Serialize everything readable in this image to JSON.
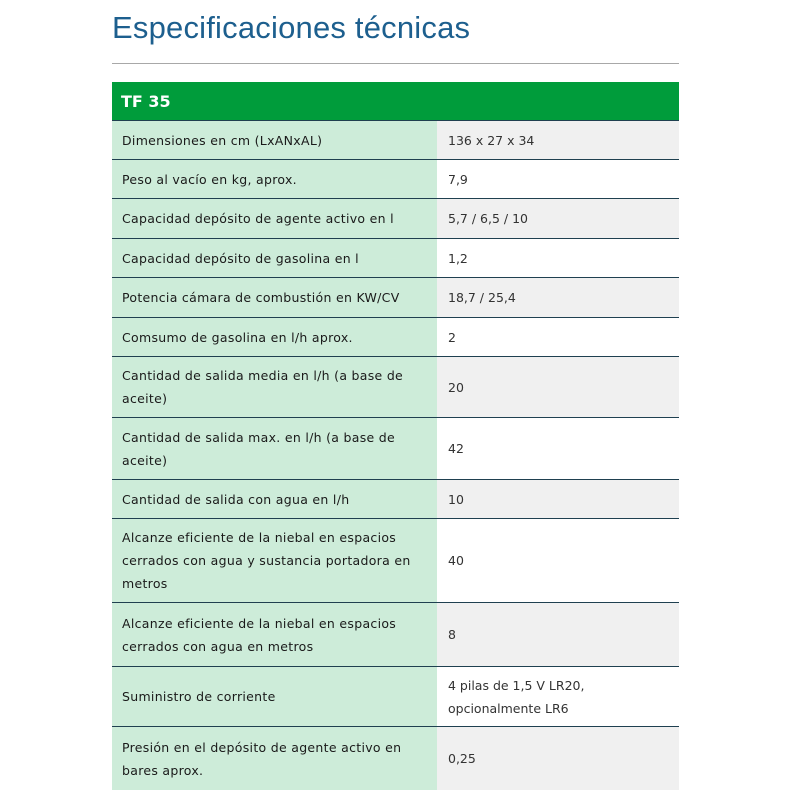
{
  "page": {
    "title": "Especificaciones técnicas"
  },
  "table": {
    "header": "TF 35",
    "rows": [
      {
        "label": "Dimensiones en cm (LxANxAL)",
        "value": "136 x 27 x 34"
      },
      {
        "label": "Peso al vacío en kg, aprox.",
        "value": "7,9"
      },
      {
        "label": "Capacidad depósito de agente activo en l",
        "value": "5,7 / 6,5 / 10"
      },
      {
        "label": "Capacidad depósito de gasolina en l",
        "value": "1,2"
      },
      {
        "label": "Potencia cámara de combustión en KW/CV",
        "value": "18,7 / 25,4"
      },
      {
        "label": "Comsumo de gasolina en l/h aprox.",
        "value": "2"
      },
      {
        "label": "Cantidad de salida media en l/h (a base de aceite)",
        "value": "20"
      },
      {
        "label": "Cantidad de salida max. en l/h (a base de aceite)",
        "value": "42"
      },
      {
        "label": "Cantidad de salida con agua en l/h",
        "value": "10"
      },
      {
        "label": "Alcanze eficiente de la niebal en espacios cerrados con agua y sustancia portadora en metros",
        "value": "40"
      },
      {
        "label": "Alcanze eficiente de la niebal en espacios cerrados con agua en metros",
        "value": "8"
      },
      {
        "label": "Suministro de corriente",
        "value": "4 pilas de 1,5 V LR20, opcionalmente LR6"
      },
      {
        "label": "Presión en el depósito de agente activo en bares aprox.",
        "value": "0,25"
      }
    ]
  },
  "colors": {
    "header_green": "#009c3b",
    "label_bg": "#cdecd9",
    "title_blue": "#1d5f8e"
  }
}
